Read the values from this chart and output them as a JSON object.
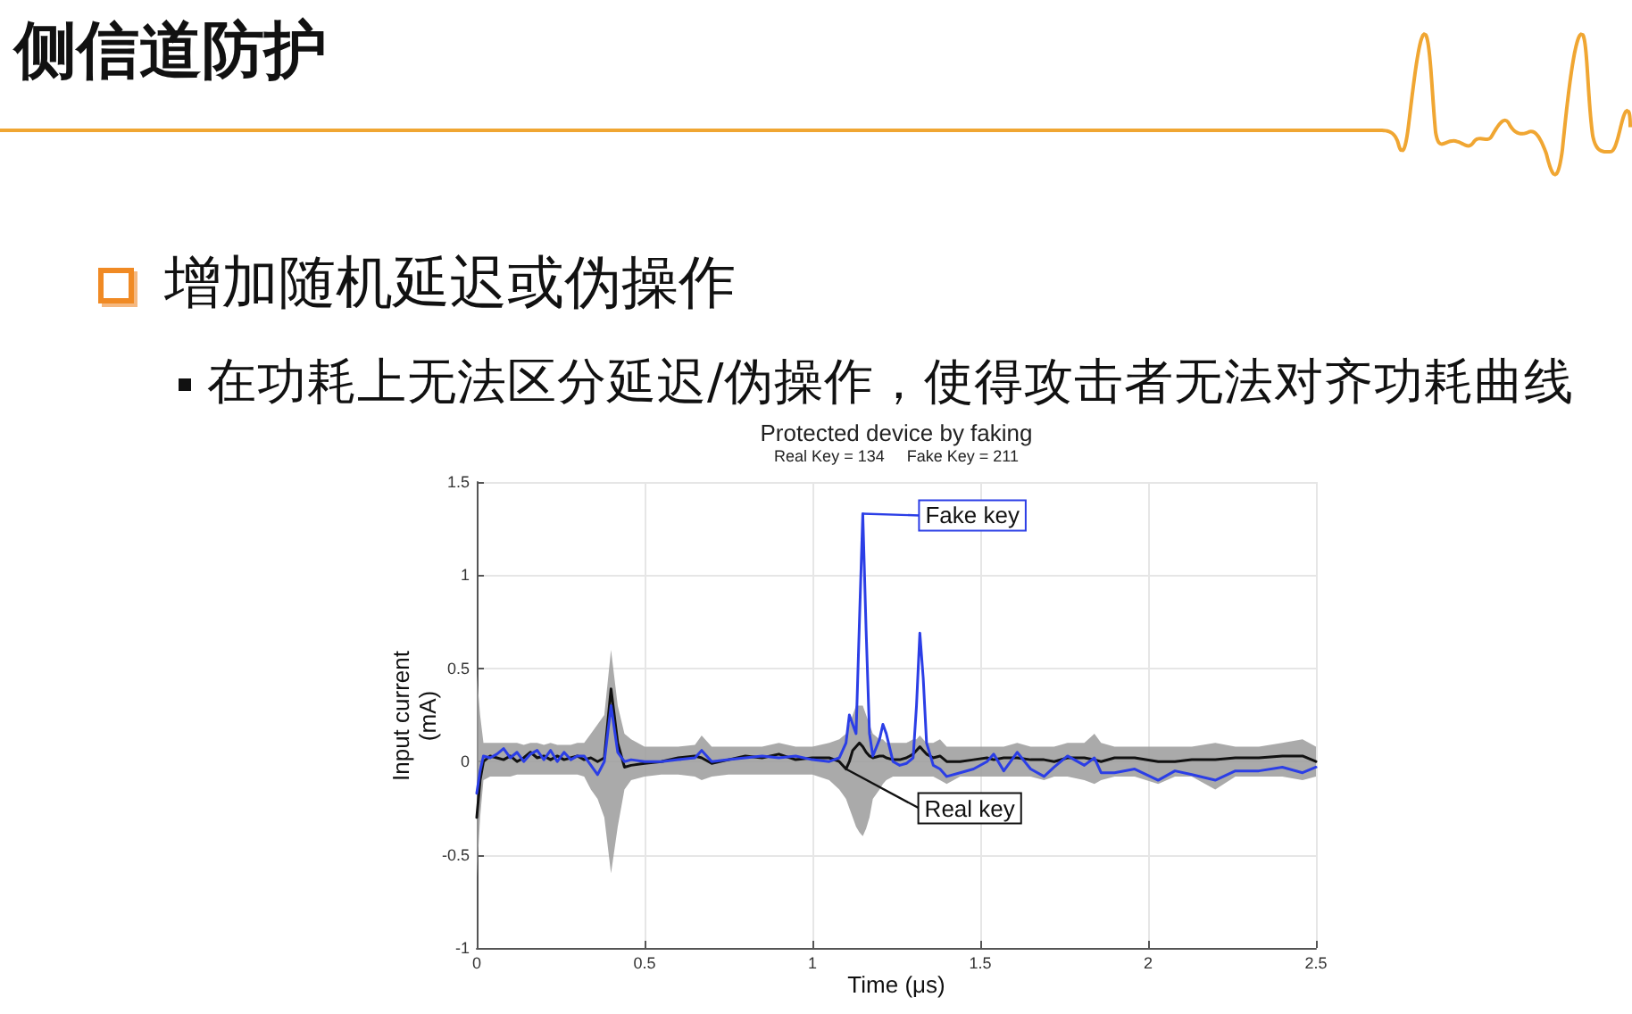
{
  "chart_data": {
    "type": "line",
    "title": "Protected device by faking",
    "subtitle": "Real Key = 134     Fake Key = 211",
    "xlabel": "Time (μs)",
    "ylabel": "Input current (mA)",
    "xlim": [
      0,
      2.5
    ],
    "xticks": [
      0,
      0.5,
      1,
      1.5,
      2,
      2.5
    ],
    "ylim": [
      -1,
      1.5
    ],
    "yticks": [
      -1,
      -0.5,
      0,
      0.5,
      1,
      1.5
    ],
    "grid": true,
    "x": [
      0,
      0.01,
      0.02,
      0.04,
      0.06,
      0.08,
      0.1,
      0.12,
      0.14,
      0.16,
      0.18,
      0.2,
      0.22,
      0.24,
      0.26,
      0.28,
      0.3,
      0.32,
      0.34,
      0.36,
      0.38,
      0.4,
      0.42,
      0.44,
      0.46,
      0.5,
      0.55,
      0.6,
      0.65,
      0.67,
      0.7,
      0.75,
      0.8,
      0.85,
      0.9,
      0.95,
      1,
      1.05,
      1.08,
      1.1,
      1.11,
      1.12,
      1.13,
      1.14,
      1.15,
      1.16,
      1.17,
      1.18,
      1.2,
      1.21,
      1.22,
      1.24,
      1.26,
      1.28,
      1.3,
      1.31,
      1.32,
      1.33,
      1.34,
      1.36,
      1.38,
      1.4,
      1.44,
      1.48,
      1.52,
      1.54,
      1.57,
      1.61,
      1.65,
      1.69,
      1.72,
      1.76,
      1.81,
      1.84,
      1.86,
      1.9,
      1.96,
      2.03,
      2.08,
      2.13,
      2.2,
      2.26,
      2.33,
      2.4,
      2.46,
      2.5
    ],
    "series": [
      {
        "color": "#111111",
        "values": [
          -0.3,
          -0.1,
          0.0,
          0.03,
          0.02,
          0.01,
          0.03,
          0.0,
          0.02,
          0.05,
          0.02,
          0.03,
          0.01,
          0.03,
          0.01,
          0.02,
          0.03,
          0.01,
          0.02,
          0.0,
          0.02,
          0.39,
          0.1,
          -0.03,
          -0.02,
          -0.01,
          0.0,
          0.02,
          0.03,
          0.02,
          -0.01,
          0.01,
          0.03,
          0.02,
          0.04,
          0.01,
          0.02,
          0.02,
          0.0,
          -0.04,
          0.0,
          0.06,
          0.08,
          0.1,
          0.08,
          0.05,
          0.03,
          0.02,
          0.03,
          0.03,
          0.02,
          0.01,
          0.01,
          0.02,
          0.04,
          0.06,
          0.08,
          0.06,
          0.04,
          0.02,
          0.03,
          0.0,
          0.0,
          0.01,
          0.02,
          0.01,
          0.02,
          0.02,
          0.01,
          0.01,
          0.0,
          0.02,
          0.02,
          0.01,
          0.0,
          0.02,
          0.02,
          0.0,
          0.0,
          0.01,
          0.01,
          0.02,
          0.02,
          0.03,
          0.03,
          0.0
        ],
        "lower": [
          -0.62,
          -0.3,
          -0.1,
          -0.08,
          -0.08,
          -0.08,
          -0.08,
          -0.07,
          -0.07,
          -0.07,
          -0.07,
          -0.07,
          -0.07,
          -0.07,
          -0.07,
          -0.07,
          -0.07,
          -0.08,
          -0.15,
          -0.2,
          -0.3,
          -0.6,
          -0.35,
          -0.15,
          -0.1,
          -0.08,
          -0.07,
          -0.07,
          -0.08,
          -0.1,
          -0.08,
          -0.07,
          -0.07,
          -0.07,
          -0.07,
          -0.07,
          -0.07,
          -0.1,
          -0.15,
          -0.2,
          -0.25,
          -0.3,
          -0.35,
          -0.38,
          -0.4,
          -0.36,
          -0.3,
          -0.2,
          -0.15,
          -0.12,
          -0.1,
          -0.08,
          -0.08,
          -0.08,
          -0.08,
          -0.08,
          -0.08,
          -0.08,
          -0.08,
          -0.08,
          -0.1,
          -0.12,
          -0.08,
          -0.08,
          -0.08,
          -0.08,
          -0.08,
          -0.08,
          -0.08,
          -0.1,
          -0.08,
          -0.08,
          -0.1,
          -0.12,
          -0.1,
          -0.08,
          -0.08,
          -0.12,
          -0.08,
          -0.08,
          -0.15,
          -0.08,
          -0.08,
          -0.08,
          -0.1,
          -0.08
        ],
        "upper": [
          0.47,
          0.25,
          0.1,
          0.1,
          0.1,
          0.1,
          0.1,
          0.1,
          0.09,
          0.1,
          0.1,
          0.09,
          0.1,
          0.09,
          0.09,
          0.09,
          0.1,
          0.1,
          0.15,
          0.2,
          0.25,
          0.6,
          0.3,
          0.15,
          0.12,
          0.08,
          0.08,
          0.08,
          0.09,
          0.14,
          0.08,
          0.08,
          0.08,
          0.08,
          0.1,
          0.08,
          0.08,
          0.1,
          0.12,
          0.15,
          0.2,
          0.25,
          0.3,
          0.3,
          0.3,
          0.25,
          0.2,
          0.15,
          0.12,
          0.12,
          0.1,
          0.1,
          0.1,
          0.1,
          0.12,
          0.12,
          0.14,
          0.12,
          0.1,
          0.1,
          0.12,
          0.08,
          0.08,
          0.08,
          0.08,
          0.08,
          0.08,
          0.1,
          0.08,
          0.08,
          0.08,
          0.1,
          0.1,
          0.15,
          0.1,
          0.08,
          0.08,
          0.08,
          0.08,
          0.08,
          0.1,
          0.08,
          0.08,
          0.1,
          0.12,
          0.08
        ]
      },
      {
        "color": "#2b3ee6",
        "values": [
          -0.17,
          -0.05,
          0.03,
          0.02,
          0.04,
          0.07,
          0.02,
          0.05,
          0.0,
          0.04,
          0.06,
          0.01,
          0.06,
          0.0,
          0.05,
          0.01,
          0.03,
          0.03,
          -0.02,
          -0.07,
          0.0,
          0.3,
          0.05,
          0.0,
          0.01,
          0.0,
          0.0,
          0.01,
          0.02,
          0.06,
          0.0,
          0.01,
          0.02,
          0.03,
          0.02,
          0.03,
          0.01,
          0.0,
          0.02,
          0.1,
          0.25,
          0.2,
          0.15,
          0.75,
          1.33,
          0.7,
          0.15,
          0.03,
          0.12,
          0.2,
          0.15,
          0.0,
          -0.02,
          -0.01,
          0.02,
          0.3,
          0.69,
          0.45,
          0.1,
          -0.02,
          -0.04,
          -0.08,
          -0.06,
          -0.04,
          0.0,
          0.04,
          -0.05,
          0.05,
          -0.04,
          -0.08,
          -0.03,
          0.03,
          -0.02,
          0.02,
          -0.06,
          -0.06,
          -0.04,
          -0.1,
          -0.05,
          -0.07,
          -0.1,
          -0.05,
          -0.05,
          -0.03,
          -0.06,
          -0.03
        ]
      }
    ],
    "annotations": [
      "侧信道防护",
      "增加随机延迟或伪操作",
      "在功耗上无法区分延迟/伪操作，使得攻击者无法对齐功耗曲线",
      {
        "text": "Fake key",
        "x": 1.15,
        "y": 1.33
      },
      {
        "text": "Real key",
        "x": 1.1,
        "y": -0.04
      }
    ]
  }
}
